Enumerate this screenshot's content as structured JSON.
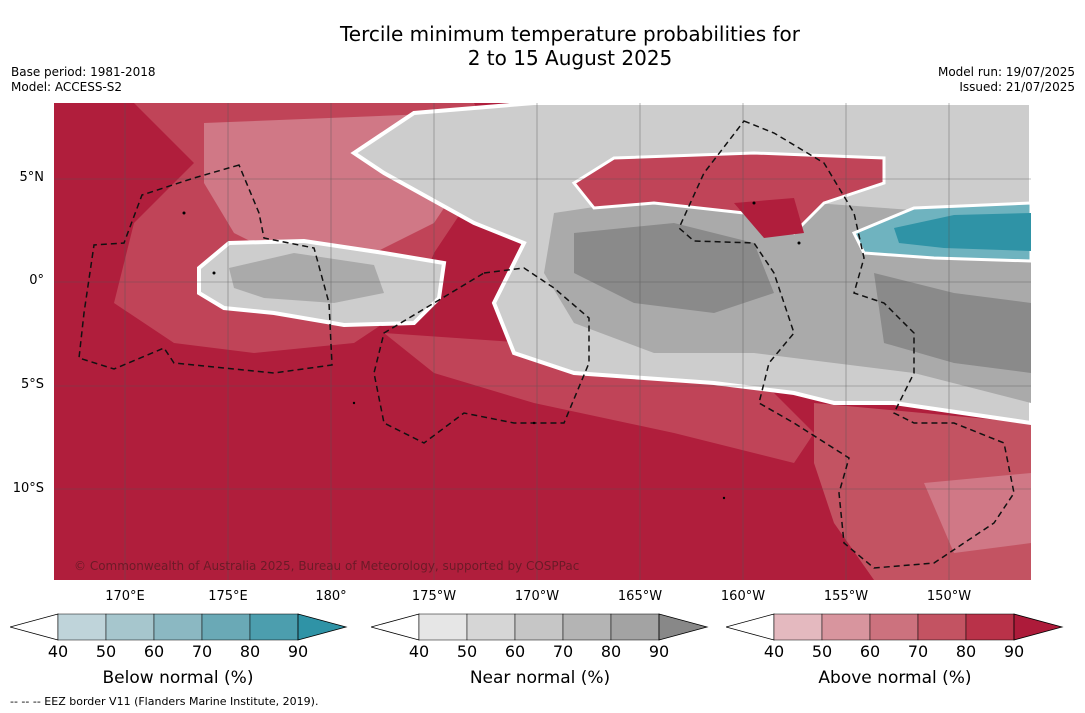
{
  "title_line1": "Tercile minimum temperature probabilities for",
  "title_line2": "2 to 15 August 2025",
  "base_period": "Base period: 1981-2018",
  "model": "Model: ACCESS-S2",
  "model_run": "Model run: 19/07/2025",
  "issued": "Issued: 21/07/2025",
  "copyright": "© Commonwealth of Australia 2025, Bureau of Meteorology, supported by COSPPac",
  "footnote": "--  --  -- EEZ border V11 (Flanders Marine Institute, 2019).",
  "lat_labels": [
    "5°N",
    "0°",
    "5°S",
    "10°S"
  ],
  "lon_labels": [
    "170°E",
    "175°E",
    "180°",
    "175°W",
    "170°W",
    "165°W",
    "160°W",
    "155°W",
    "150°W"
  ],
  "colorbars": [
    {
      "title": "Below normal (%)",
      "ticks": [
        "40",
        "50",
        "60",
        "70",
        "80",
        "90"
      ],
      "colors": [
        "#ffffff",
        "#bfd4da",
        "#a6c6cd",
        "#8bb8c2",
        "#6aa9b6",
        "#4c9eae",
        "#2f93a6"
      ]
    },
    {
      "title": "Near normal (%)",
      "ticks": [
        "40",
        "50",
        "60",
        "70",
        "80",
        "90"
      ],
      "colors": [
        "#ffffff",
        "#e6e6e6",
        "#d6d6d6",
        "#c6c6c6",
        "#b4b4b4",
        "#a3a3a3",
        "#888888"
      ]
    },
    {
      "title": "Above normal (%)",
      "ticks": [
        "40",
        "50",
        "60",
        "70",
        "80",
        "90"
      ],
      "colors": [
        "#ffffff",
        "#e4b9bf",
        "#d8959e",
        "#cc727e",
        "#c35362",
        "#b93249",
        "#ad1b3a"
      ]
    }
  ],
  "colors": {
    "above_dark": "#b01e3c",
    "above_mid": "#c04458",
    "above_light": "#d07886",
    "near_light": "#cdcdcd",
    "near_mid": "#aaaaaa",
    "near_dark": "#8a8a8a",
    "below_light": "#6fb3bf",
    "below_dark": "#2f93a6"
  }
}
